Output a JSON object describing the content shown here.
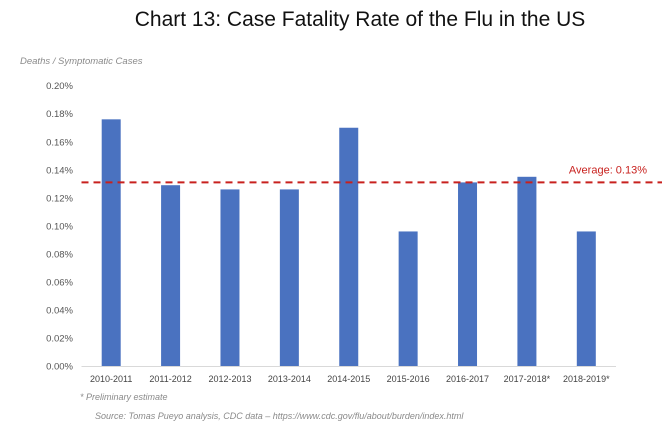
{
  "chart_data": {
    "type": "bar",
    "title": "Chart 13: Case Fatality Rate of the Flu in the US",
    "ylabel": "Deaths / Symptomatic Cases",
    "xlabel": "",
    "categories": [
      "2010-2011",
      "2011-2012",
      "2012-2013",
      "2013-2014",
      "2014-2015",
      "2015-2016",
      "2016-2017",
      "2017-2018*",
      "2018-2019*"
    ],
    "values": [
      0.176,
      0.129,
      0.126,
      0.126,
      0.17,
      0.096,
      0.131,
      0.135,
      0.096
    ],
    "unit": "%",
    "ylim": [
      0,
      0.2
    ],
    "yticks": [
      "0.00%",
      "0.02%",
      "0.04%",
      "0.06%",
      "0.08%",
      "0.10%",
      "0.12%",
      "0.14%",
      "0.16%",
      "0.18%",
      "0.20%"
    ],
    "grid": false,
    "bar_color": "#4a72c0",
    "reference_line": {
      "value": 0.131,
      "label": "Average: 0.13%",
      "color": "#c8211e",
      "style": "dashed"
    },
    "annotations": [
      "* Preliminary estimate",
      "Source: Tomas Pueyo analysis, CDC data – https://www.cdc.gov/flu/about/burden/index.html"
    ]
  }
}
